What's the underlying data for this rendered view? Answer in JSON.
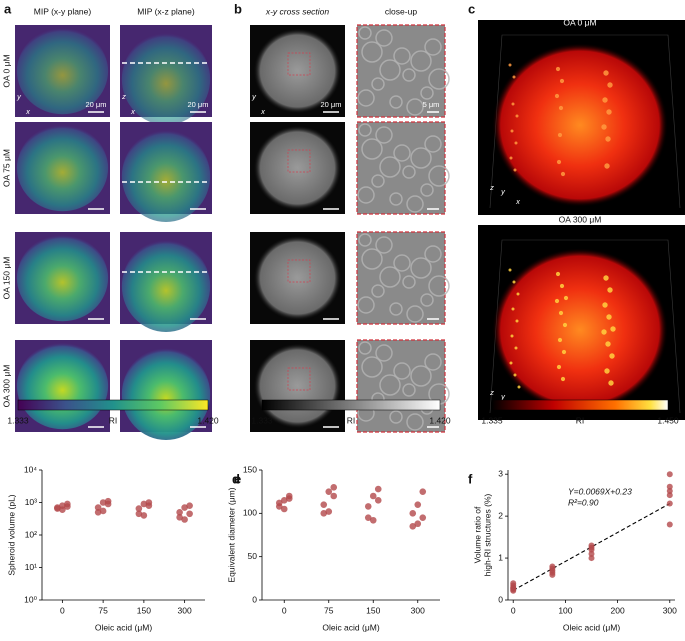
{
  "panels": {
    "a": {
      "letter": "a",
      "headers": [
        "MIP (x-y plane)",
        "MIP (x-z plane)"
      ],
      "rows": [
        "OA 0 μM",
        "OA 75 μM",
        "OA 150 μM",
        "OA 300 μM"
      ],
      "scale_labels": [
        "20 μm",
        "20 μm"
      ],
      "axis_glyphs": [
        [
          "y",
          "x"
        ],
        [
          "z",
          "x"
        ]
      ],
      "colorbar": {
        "min": "1.333",
        "label": "RI",
        "max": "1.420"
      }
    },
    "b": {
      "letter": "b",
      "headers": [
        "x-y cross section",
        "close-up"
      ],
      "scale_labels": [
        "20 μm",
        "5 μm"
      ],
      "axis_glyphs": [
        [
          "y",
          "x"
        ]
      ],
      "colorbar": {
        "min": "1.333",
        "label": "RI",
        "max": "1.420"
      }
    },
    "c": {
      "letter": "c",
      "titles": [
        "OA 0 μM",
        "OA 300 μM"
      ],
      "axis_glyphs": [
        "z",
        "y",
        "x"
      ],
      "colorbar": {
        "min": "1.335",
        "label": "RI",
        "max": "1.450"
      }
    }
  },
  "chart_data": [
    {
      "type": "strip",
      "letter": "d",
      "y_label": "Spheroid volume (pL)",
      "x_label": "Oleic acid (μM)",
      "categories": [
        "0",
        "75",
        "150",
        "300"
      ],
      "values": [
        [
          650,
          800,
          900,
          700,
          600,
          750
        ],
        [
          500,
          1000,
          1100,
          700,
          550,
          900
        ],
        [
          450,
          900,
          1000,
          650,
          400,
          800
        ],
        [
          350,
          700,
          800,
          500,
          300,
          450
        ]
      ],
      "color": "#b3484b",
      "log_y": true,
      "ylim": [
        1,
        10000
      ],
      "yticks": [
        {
          "value": 1,
          "label": "10⁰"
        },
        {
          "value": 10,
          "label": "10¹"
        },
        {
          "value": 100,
          "label": "10²"
        },
        {
          "value": 1000,
          "label": "10³"
        },
        {
          "value": 10000,
          "label": "10⁴"
        }
      ]
    },
    {
      "type": "strip",
      "letter": "e",
      "y_label": "Equivalent diameter (μm)",
      "x_label": "Oleic acid (μM)",
      "categories": [
        "0",
        "75",
        "150",
        "300"
      ],
      "values": [
        [
          108,
          115,
          120,
          112,
          105,
          117
        ],
        [
          100,
          125,
          130,
          110,
          102,
          120
        ],
        [
          95,
          120,
          128,
          108,
          92,
          115
        ],
        [
          85,
          110,
          125,
          100,
          88,
          95
        ]
      ],
      "color": "#b3484b",
      "ylim": [
        0,
        150
      ],
      "yticks": [
        0,
        50,
        100,
        150
      ]
    },
    {
      "type": "scatter",
      "letter": "f",
      "y_label": [
        "Volume ratio of",
        "high-RI structures (%)"
      ],
      "x_label": "Oleic acid (μM)",
      "x": [
        0,
        0,
        0,
        0,
        0,
        0,
        75,
        75,
        75,
        75,
        75,
        150,
        150,
        150,
        150,
        150,
        300,
        300,
        300,
        300,
        300,
        300
      ],
      "y": [
        0.25,
        0.3,
        0.35,
        0.28,
        0.4,
        0.22,
        0.6,
        0.7,
        0.75,
        0.8,
        0.65,
        1.0,
        1.1,
        1.2,
        1.3,
        1.25,
        1.8,
        2.3,
        2.5,
        2.6,
        3.0,
        2.7
      ],
      "color": "#b3484b",
      "xlim": [
        -10,
        310
      ],
      "xticks": [
        0,
        100,
        200,
        300
      ],
      "ylim": [
        0,
        3.1
      ],
      "yticks": [
        0,
        1,
        2,
        3
      ],
      "fit": {
        "slope": 0.0069,
        "intercept": 0.23
      },
      "annotations": [
        "Y=0.0069X+0.23",
        "R²=0.90"
      ]
    }
  ]
}
